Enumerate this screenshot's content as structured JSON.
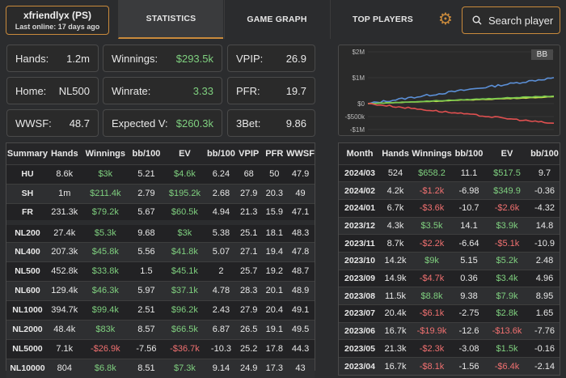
{
  "player": {
    "name": "xfriendlyx (PS)",
    "last_online": "Last online: 17 days ago"
  },
  "tabs": [
    {
      "label": "STATISTICS",
      "active": true
    },
    {
      "label": "GAME GRAPH",
      "active": false
    },
    {
      "label": "TOP PLAYERS",
      "active": false
    }
  ],
  "search": {
    "label": "Search player"
  },
  "stats": {
    "hands": {
      "label": "Hands:",
      "value": "1.2m"
    },
    "winnings": {
      "label": "Winnings:",
      "value": "$293.5k"
    },
    "vpip": {
      "label": "VPIP:",
      "value": "26.9"
    },
    "home": {
      "label": "Home:",
      "value": "NL500"
    },
    "winrate": {
      "label": "Winrate:",
      "value": "3.33"
    },
    "pfr": {
      "label": "PFR:",
      "value": "19.7"
    },
    "wwsf": {
      "label": "WWSF:",
      "value": "48.7"
    },
    "expected": {
      "label": "Expected V:",
      "value": "$260.3k"
    },
    "threebet": {
      "label": "3Bet:",
      "value": "9.86"
    }
  },
  "chart_data": {
    "type": "line",
    "badge": "BB",
    "yticks": [
      "$2M",
      "$1M",
      "$0",
      "-$500k",
      "-$1M"
    ],
    "ylim": [
      -1000000,
      2000000
    ],
    "series": [
      {
        "color": "#5b8fd6",
        "end": 1000000
      },
      {
        "color": "#c9e04a",
        "end": 260000
      },
      {
        "color": "#78c850",
        "end": 293500
      },
      {
        "color": "#e05050",
        "end": -770000
      }
    ]
  },
  "summary_table": {
    "headers": [
      "Summary",
      "Hands",
      "Winnings",
      "bb/100",
      "EV",
      "bb/100",
      "VPIP",
      "PFR",
      "WWSF"
    ],
    "rows": [
      [
        "HU",
        "8.6k",
        "$3k",
        "5.21",
        "$4.6k",
        "6.24",
        "68",
        "50",
        "47.9"
      ],
      [
        "SH",
        "1m",
        "$211.4k",
        "2.79",
        "$195.2k",
        "2.68",
        "27.9",
        "20.3",
        "49"
      ],
      [
        "FR",
        "231.3k",
        "$79.2k",
        "5.67",
        "$60.5k",
        "4.94",
        "21.3",
        "15.9",
        "47.1"
      ]
    ],
    "stakes": [
      [
        "NL200",
        "27.4k",
        "$5.3k",
        "9.68",
        "$3k",
        "5.38",
        "25.1",
        "18.1",
        "48.3"
      ],
      [
        "NL400",
        "207.3k",
        "$45.8k",
        "5.56",
        "$41.8k",
        "5.07",
        "27.1",
        "19.4",
        "47.8"
      ],
      [
        "NL500",
        "452.8k",
        "$33.8k",
        "1.5",
        "$45.1k",
        "2",
        "25.7",
        "19.2",
        "48.7"
      ],
      [
        "NL600",
        "129.4k",
        "$46.3k",
        "5.97",
        "$37.1k",
        "4.78",
        "28.3",
        "20.1",
        "48.9"
      ],
      [
        "NL1000",
        "394.7k",
        "$99.4k",
        "2.51",
        "$96.2k",
        "2.43",
        "27.9",
        "20.4",
        "49.1"
      ],
      [
        "NL2000",
        "48.4k",
        "$83k",
        "8.57",
        "$66.5k",
        "6.87",
        "26.5",
        "19.1",
        "49.5"
      ],
      [
        "NL5000",
        "7.1k",
        "-$26.9k",
        "-7.56",
        "-$36.7k",
        "-10.3",
        "25.2",
        "17.8",
        "44.3"
      ],
      [
        "NL10000",
        "804",
        "$6.8k",
        "8.51",
        "$7.3k",
        "9.14",
        "24.9",
        "17.3",
        "43"
      ]
    ]
  },
  "month_table": {
    "headers": [
      "Month",
      "Hands",
      "Winnings",
      "bb/100",
      "EV",
      "bb/100"
    ],
    "rows": [
      [
        "2024/03",
        "524",
        "$658.2",
        "11.1",
        "$517.5",
        "9.7"
      ],
      [
        "2024/02",
        "4.2k",
        "-$1.2k",
        "-6.98",
        "$349.9",
        "-0.36"
      ],
      [
        "2024/01",
        "6.7k",
        "-$3.6k",
        "-10.7",
        "-$2.6k",
        "-4.32"
      ],
      [
        "2023/12",
        "4.3k",
        "$3.5k",
        "14.1",
        "$3.9k",
        "14.8"
      ],
      [
        "2023/11",
        "8.7k",
        "-$2.2k",
        "-6.64",
        "-$5.1k",
        "-10.9"
      ],
      [
        "2023/10",
        "14.2k",
        "$9k",
        "5.15",
        "$5.2k",
        "2.48"
      ],
      [
        "2023/09",
        "14.9k",
        "-$4.7k",
        "0.36",
        "$3.4k",
        "4.96"
      ],
      [
        "2023/08",
        "11.5k",
        "$8.8k",
        "9.38",
        "$7.9k",
        "8.95"
      ],
      [
        "2023/07",
        "20.4k",
        "-$6.1k",
        "-2.75",
        "$2.8k",
        "1.65"
      ],
      [
        "2023/06",
        "16.7k",
        "-$19.9k",
        "-12.6",
        "-$13.6k",
        "-7.76"
      ],
      [
        "2023/05",
        "21.3k",
        "-$2.3k",
        "-3.08",
        "$1.5k",
        "-0.16"
      ],
      [
        "2023/04",
        "16.7k",
        "-$8.1k",
        "-1.56",
        "-$6.4k",
        "-2.14"
      ]
    ]
  }
}
